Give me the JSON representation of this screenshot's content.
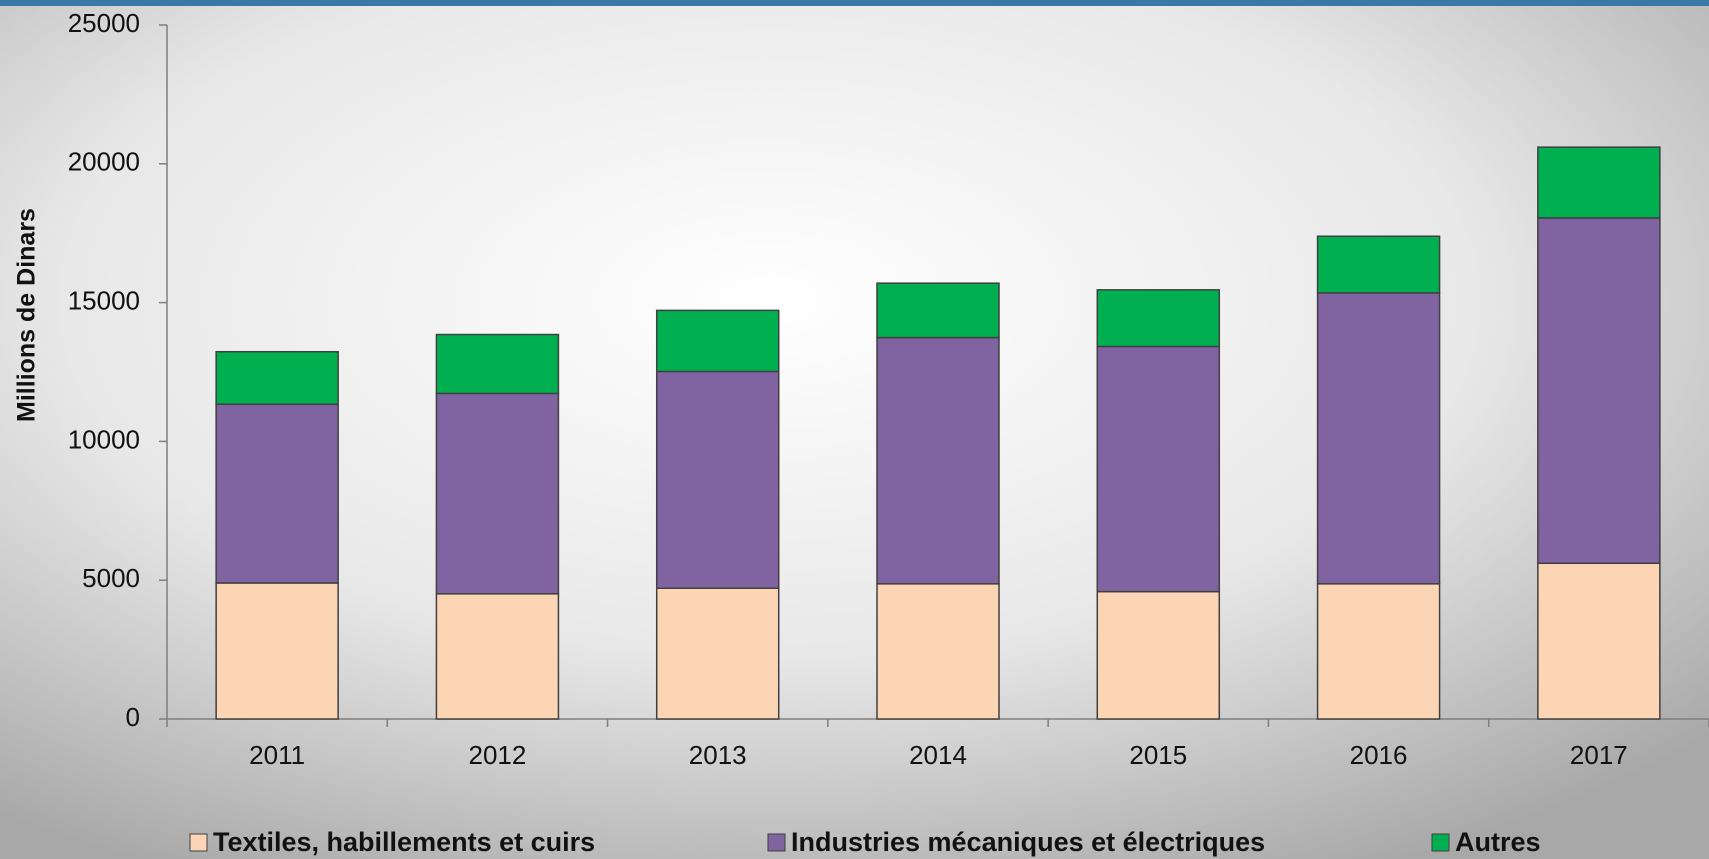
{
  "chart_data": {
    "type": "stacked_bar",
    "y_axis_label": "Millions de Dinars",
    "categories": [
      "2011",
      "2012",
      "2013",
      "2014",
      "2015",
      "2016",
      "2017"
    ],
    "series": [
      {
        "name": "Textiles, habillements et cuirs",
        "color": "#fcd5b5",
        "values": [
          4900,
          4510,
          4710,
          4870,
          4590,
          4870,
          5610
        ]
      },
      {
        "name": "Industries mécaniques et électriques",
        "color": "#8064a2",
        "values": [
          6440,
          7220,
          7810,
          8870,
          8830,
          10480,
          12440
        ]
      },
      {
        "name": "Autres",
        "color": "#00b050",
        "values": [
          1890,
          2120,
          2200,
          1960,
          2040,
          2040,
          2550
        ]
      }
    ],
    "ylim": [
      0,
      25000
    ],
    "yticks": [
      0,
      5000,
      10000,
      15000,
      20000,
      25000
    ],
    "grid": false
  }
}
